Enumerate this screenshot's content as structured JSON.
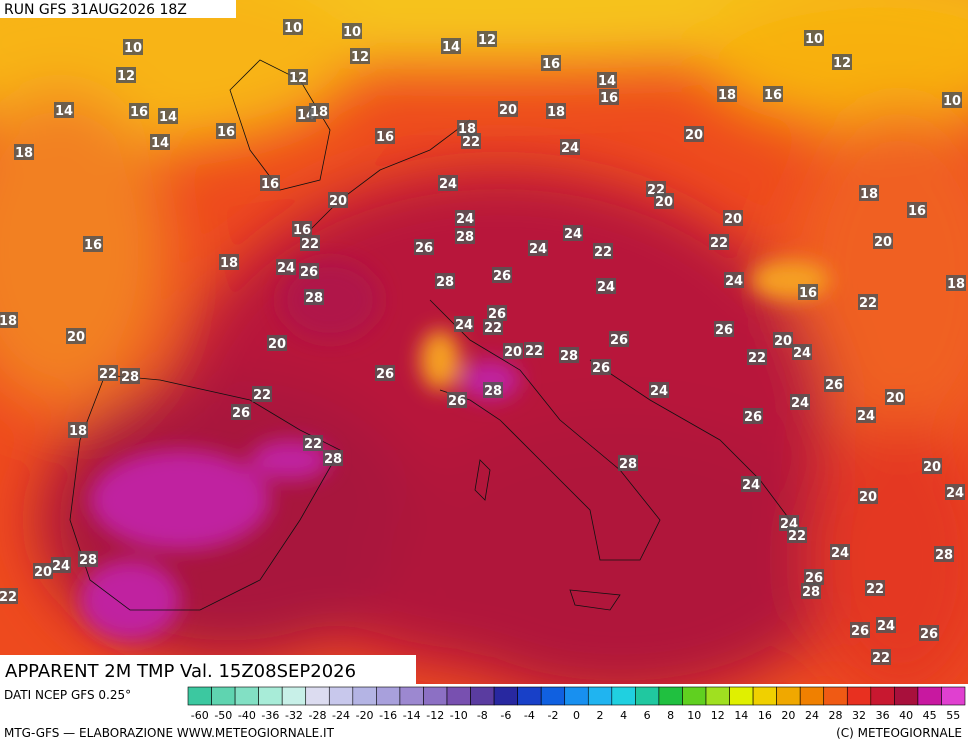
{
  "header": {
    "run": "RUN GFS 31AUG2026 18Z"
  },
  "footer": {
    "title": "APPARENT 2M TMP Val. 15Z08SEP2026",
    "source": "DATI NCEP GFS 0.25°",
    "credit": "MTG-GFS — ELABORAZIONE WWW.METEOGIORNALE.IT",
    "copyright": "(C) METEOGIORNALE"
  },
  "legend": {
    "ticks": [
      -60,
      -50,
      -40,
      -36,
      -32,
      -28,
      -24,
      -20,
      -16,
      -14,
      -12,
      -10,
      -8,
      -6,
      -4,
      -2,
      0,
      2,
      4,
      6,
      8,
      10,
      12,
      14,
      16,
      20,
      24,
      28,
      32,
      36,
      40,
      45,
      55
    ],
    "colors": [
      "#3cc8a0",
      "#5fd4b0",
      "#82e0c4",
      "#a8ecd8",
      "#c8f0e8",
      "#dcdcf0",
      "#c8c8ec",
      "#b4b4e4",
      "#a8a0dc",
      "#9c88d0",
      "#8c70c4",
      "#7850b0",
      "#5a3ca0",
      "#2828a0",
      "#1840c8",
      "#1060e0",
      "#1890f0",
      "#20b4f0",
      "#20d0e0",
      "#20c8a0",
      "#20c040",
      "#60d020",
      "#a0e020",
      "#e0f000",
      "#f0d000",
      "#f0a800",
      "#f08000",
      "#f05a14",
      "#e83020",
      "#c81830",
      "#a8103c",
      "#c818a0",
      "#e040d0"
    ]
  },
  "labels": [
    10,
    10,
    10,
    14,
    12,
    12,
    12,
    12,
    16,
    14,
    16,
    14,
    16,
    14,
    16,
    14,
    14,
    18,
    16,
    18,
    18,
    22,
    20,
    18,
    24,
    18,
    16,
    10,
    12,
    10,
    20,
    16,
    20,
    24,
    24,
    28,
    16,
    16,
    22,
    26,
    24,
    24,
    22,
    22,
    20,
    20,
    22,
    18,
    16,
    20,
    18,
    24,
    26,
    28,
    28,
    26,
    24,
    24,
    16,
    22,
    18,
    18,
    20,
    20,
    24,
    26,
    22,
    20,
    22,
    28,
    26,
    26,
    20,
    24,
    22,
    26,
    22,
    28,
    26,
    28,
    26,
    22,
    26,
    24,
    26,
    24,
    26,
    24,
    20,
    18,
    22,
    28,
    28,
    20,
    24,
    20,
    24,
    24,
    22,
    24,
    28,
    24,
    20,
    28,
    26,
    28,
    22,
    22,
    26,
    24,
    26,
    22
  ]
}
